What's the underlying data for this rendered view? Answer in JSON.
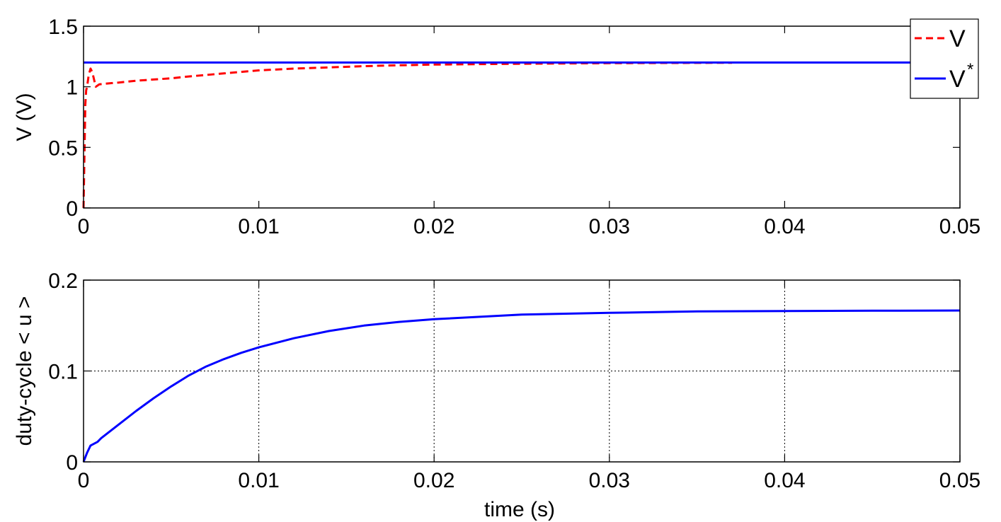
{
  "chart_data": [
    {
      "type": "line",
      "title": "",
      "xlabel": "",
      "ylabel": "V (V)",
      "xlim": [
        0,
        0.05
      ],
      "ylim": [
        0,
        1.5
      ],
      "xticks": [
        0,
        0.01,
        0.02,
        0.03,
        0.04,
        0.05
      ],
      "xtick_labels": [
        "0",
        "0.01",
        "0.02",
        "0.03",
        "0.04",
        "0.05"
      ],
      "yticks": [
        0,
        0.5,
        1,
        1.5
      ],
      "ytick_labels": [
        "0",
        "0.5",
        "1",
        "1.5"
      ],
      "grid": false,
      "legend": {
        "placement": "top-right",
        "entries": [
          {
            "label": "V",
            "superscript": "",
            "color": "#ff0000",
            "style": "dashed"
          },
          {
            "label": "V",
            "superscript": "*",
            "color": "#0000ff",
            "style": "solid"
          }
        ]
      },
      "series": [
        {
          "name": "V",
          "color": "#ff0000",
          "style": "dashed",
          "x": [
            0,
            5e-05,
            0.0001,
            0.00015,
            0.0002,
            0.0003,
            0.0004,
            0.0005,
            0.0007,
            0.0009,
            0.0012,
            0.0016,
            0.002,
            0.003,
            0.004,
            0.005,
            0.006,
            0.008,
            0.01,
            0.012,
            0.014,
            0.016,
            0.018,
            0.02,
            0.025,
            0.03,
            0.037
          ],
          "y": [
            0,
            0.4,
            0.85,
            0.97,
            1.0,
            1.1,
            1.15,
            1.12,
            1.0,
            1.02,
            1.025,
            1.03,
            1.035,
            1.05,
            1.06,
            1.07,
            1.085,
            1.11,
            1.135,
            1.15,
            1.16,
            1.17,
            1.177,
            1.183,
            1.19,
            1.195,
            1.198
          ]
        },
        {
          "name": "V",
          "color": "#0000ff",
          "style": "solid",
          "x": [
            0,
            0.05
          ],
          "y": [
            1.2,
            1.2
          ]
        }
      ]
    },
    {
      "type": "line",
      "title": "",
      "xlabel": "time (s)",
      "ylabel": "duty-cycle < u >",
      "xlim": [
        0,
        0.05
      ],
      "ylim": [
        0,
        0.2
      ],
      "xticks": [
        0,
        0.01,
        0.02,
        0.03,
        0.04,
        0.05
      ],
      "xtick_labels": [
        "0",
        "0.01",
        "0.02",
        "0.03",
        "0.04",
        "0.05"
      ],
      "yticks": [
        0,
        0.1,
        0.2
      ],
      "ytick_labels": [
        "0",
        "0.1",
        "0.2"
      ],
      "grid": true,
      "series": [
        {
          "color": "#0000ff",
          "style": "solid",
          "x": [
            0,
            0.0002,
            0.0004,
            0.0008,
            0.001,
            0.002,
            0.003,
            0.004,
            0.005,
            0.006,
            0.007,
            0.008,
            0.009,
            0.01,
            0.012,
            0.014,
            0.016,
            0.018,
            0.02,
            0.025,
            0.03,
            0.035,
            0.04,
            0.045,
            0.05
          ],
          "y": [
            0,
            0.01,
            0.018,
            0.022,
            0.026,
            0.041,
            0.056,
            0.07,
            0.083,
            0.095,
            0.105,
            0.113,
            0.12,
            0.126,
            0.136,
            0.144,
            0.15,
            0.154,
            0.157,
            0.162,
            0.164,
            0.1655,
            0.166,
            0.1663,
            0.1665
          ]
        }
      ]
    }
  ]
}
